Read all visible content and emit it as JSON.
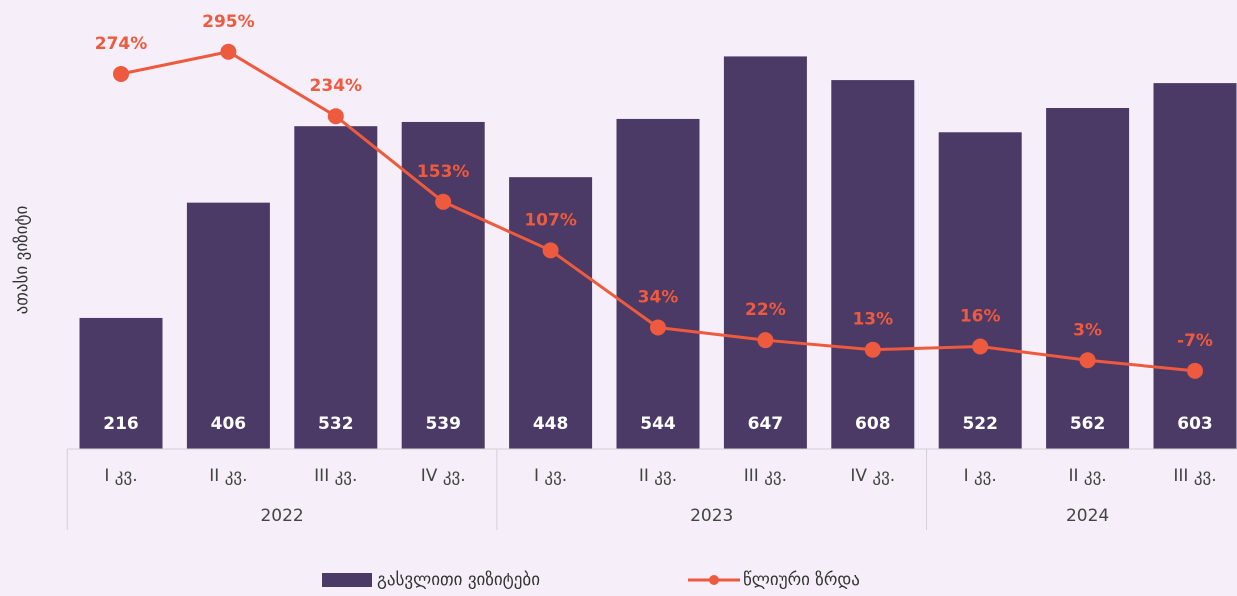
{
  "chart_data": {
    "type": "combo",
    "y_axis_label": "ათასი ვიზიტი",
    "groups": [
      {
        "label": "2022",
        "categories": [
          "I კვ.",
          "II კვ.",
          "III კვ.",
          "IV კვ."
        ]
      },
      {
        "label": "2023",
        "categories": [
          "I კვ.",
          "II კვ.",
          "III კვ.",
          "IV კვ."
        ]
      },
      {
        "label": "2024",
        "categories": [
          "I კვ.",
          "II კვ.",
          "III კვ."
        ]
      }
    ],
    "series": [
      {
        "name": "გასვლითი ვიზიტები",
        "type": "bar",
        "color": "#4b3966",
        "values": [
          216,
          406,
          532,
          539,
          448,
          544,
          647,
          608,
          522,
          562,
          603
        ]
      },
      {
        "name": "წლიური ზრდა",
        "type": "line",
        "axis": "y2",
        "color": "#ee5a3d",
        "values": [
          274,
          295,
          234,
          153,
          107,
          34,
          22,
          13,
          16,
          3,
          -7
        ],
        "value_labels": [
          "274%",
          "295%",
          "234%",
          "153%",
          "107%",
          "34%",
          "22%",
          "13%",
          "16%",
          "3%",
          "-7%"
        ]
      }
    ],
    "ylim": [
      0,
      740
    ],
    "y2lim": [
      -81,
      344
    ],
    "legend": "bottom"
  }
}
